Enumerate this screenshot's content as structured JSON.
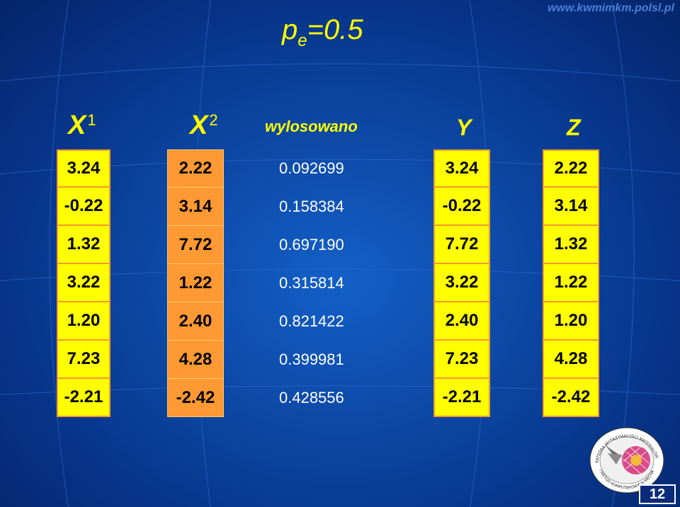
{
  "url": "www.kwmimkm.polsl.pl",
  "title": {
    "p": "p",
    "sub": "e",
    "rest": "=0.5"
  },
  "headers": {
    "x1": {
      "letter": "X",
      "sup": "1"
    },
    "x2": {
      "letter": "X",
      "sup": "2"
    },
    "drawn": "wylosowano",
    "y": "Y",
    "z": "Z"
  },
  "columns": {
    "x1": [
      "3.24",
      "-0.22",
      "1.32",
      "3.22",
      "1.20",
      "7.23",
      "-2.21"
    ],
    "x2": [
      "2.22",
      "3.14",
      "7.72",
      "1.22",
      "2.40",
      "4.28",
      "-2.42"
    ],
    "drawn": [
      "0.092699",
      "0.158384",
      "0.697190",
      "0.315814",
      "0.821422",
      "0.399981",
      "0.428556"
    ],
    "y": [
      "3.24",
      "-0.22",
      "7.72",
      "3.22",
      "2.40",
      "7.23",
      "-2.21"
    ],
    "z": [
      "2.22",
      "3.14",
      "1.32",
      "1.22",
      "1.20",
      "4.28",
      "-2.42"
    ]
  },
  "logo": {
    "text_top": "KATEDRA WYTRZYMAŁOŚCI MATERIAŁÓW",
    "text_bottom": "I METOD KOMPUTEROWYCH MECHANIKI"
  },
  "page_number": "12",
  "colors": {
    "yellow": "#ffff00",
    "orange": "#ff9933",
    "background": "#0d4aa8"
  }
}
